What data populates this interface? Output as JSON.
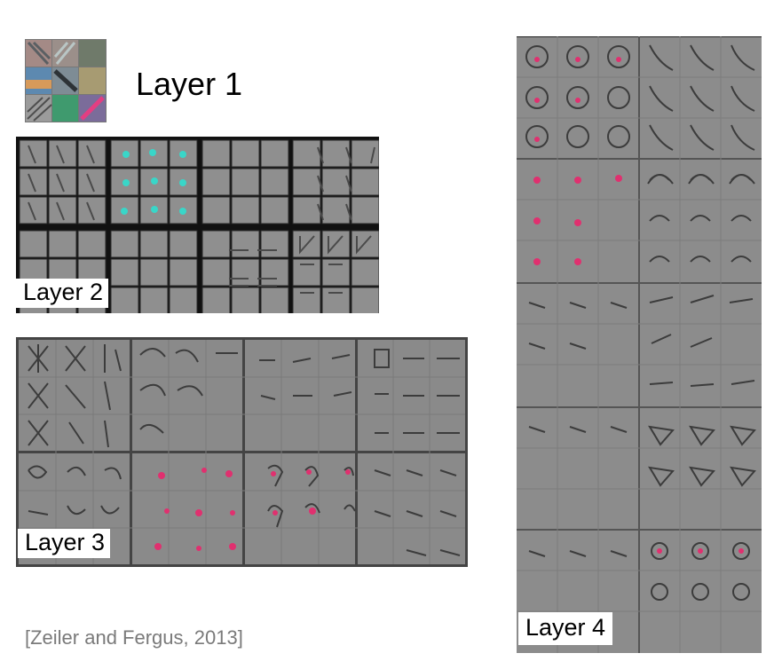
{
  "layers": [
    {
      "id": "layer1",
      "label": "Layer 1"
    },
    {
      "id": "layer2",
      "label": "Layer 2"
    },
    {
      "id": "layer3",
      "label": "Layer 3"
    },
    {
      "id": "layer4",
      "label": "Layer 4"
    }
  ],
  "citation": "[Zeiler and Fergus, 2013]",
  "colors": {
    "panel_gray": "#8a8a8a",
    "cell_gray": "#999999",
    "grid_dark": "#111111",
    "accent_pink": "#e0306f",
    "accent_cyan": "#39d6c8",
    "citation_gray": "#7a7a7a"
  }
}
